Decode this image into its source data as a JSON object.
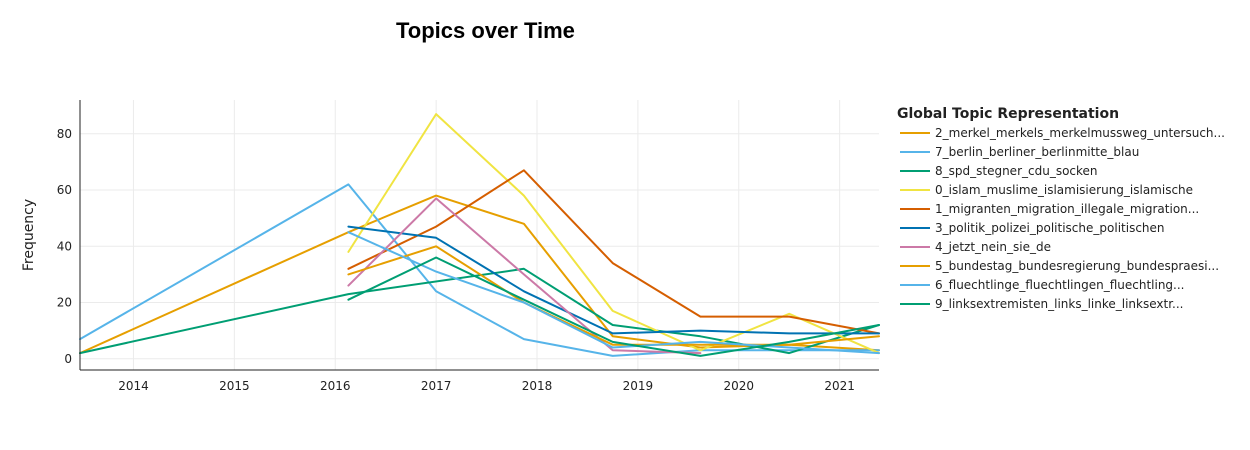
{
  "chart_data": {
    "type": "line",
    "title": "Topics over Time",
    "xlabel": "",
    "ylabel": "Frequency",
    "x_ticks": [
      "2014",
      "2015",
      "2016",
      "2017",
      "2018",
      "2019",
      "2020",
      "2021"
    ],
    "y_ticks": [
      "0",
      "20",
      "40",
      "60",
      "80"
    ],
    "xlim": [
      2013.47,
      2021.39
    ],
    "ylim": [
      -4,
      92
    ],
    "grid": true,
    "legend": {
      "title": "Global Topic Representation",
      "placement": "right"
    },
    "series": [
      {
        "name": "2_merkel_merkels_merkelmussweg_untersuch...",
        "color": "#E69F00",
        "x": [
          2013.47,
          2016.13,
          2017.0,
          2017.87,
          2018.75,
          2019.62,
          2020.5,
          2021.39
        ],
        "y": [
          2,
          45,
          58,
          48,
          8,
          4,
          5,
          3
        ]
      },
      {
        "name": "7_berlin_berliner_berlinmitte_blau",
        "color": "#56B4E9",
        "x": [
          2013.47,
          2016.13,
          2017.0,
          2017.87,
          2018.75,
          2019.62,
          2020.5,
          2021.39
        ],
        "y": [
          7,
          62,
          24,
          7,
          1,
          3,
          3,
          3
        ]
      },
      {
        "name": "8_spd_stegner_cdu_socken",
        "color": "#009E73",
        "x": [
          2013.47,
          2016.13,
          2017.87,
          2018.75,
          2019.62,
          2020.5,
          2021.39
        ],
        "y": [
          2,
          23,
          32,
          12,
          8,
          2,
          12
        ]
      },
      {
        "name": "0_islam_muslime_islamisierung_islamische",
        "color": "#F0E442",
        "x": [
          2016.13,
          2017.0,
          2017.87,
          2018.75,
          2019.62,
          2020.5,
          2021.39
        ],
        "y": [
          38,
          87,
          58,
          17,
          3,
          16,
          2
        ]
      },
      {
        "name": "1_migranten_migration_illegale_migration...",
        "color": "#D55E00",
        "x": [
          2016.13,
          2017.0,
          2017.87,
          2018.75,
          2019.62,
          2020.5,
          2021.39
        ],
        "y": [
          32,
          47,
          67,
          34,
          15,
          15,
          9
        ]
      },
      {
        "name": "3_politik_polizei_politische_politischen",
        "color": "#0072B2",
        "x": [
          2016.13,
          2017.0,
          2017.87,
          2018.75,
          2019.62,
          2020.5,
          2021.39
        ],
        "y": [
          47,
          43,
          24,
          9,
          10,
          9,
          9
        ]
      },
      {
        "name": "4_jetzt_nein_sie_de",
        "color": "#CC79A7",
        "x": [
          2016.13,
          2017.0,
          2017.87,
          2018.75,
          2019.62
        ],
        "y": [
          26,
          57,
          30,
          3,
          2
        ]
      },
      {
        "name": "5_bundestag_bundesregierung_bundespraesi...",
        "color": "#E69F00",
        "x": [
          2016.13,
          2017.0,
          2017.87,
          2018.75,
          2019.62,
          2020.5,
          2021.39
        ],
        "y": [
          30,
          40,
          20,
          5,
          5,
          5,
          8
        ]
      },
      {
        "name": "6_fluechtlinge_fluechtlingen_fluechtling...",
        "color": "#56B4E9",
        "x": [
          2016.13,
          2017.0,
          2017.87,
          2018.75,
          2019.62,
          2020.5,
          2021.39
        ],
        "y": [
          45,
          31,
          20,
          4,
          6,
          4,
          2
        ]
      },
      {
        "name": "9_linksextremisten_links_linke_linksextr...",
        "color": "#009E73",
        "x": [
          2016.13,
          2017.0,
          2017.87,
          2018.75,
          2019.62,
          2020.5,
          2021.39
        ],
        "y": [
          21,
          36,
          21,
          6,
          1,
          6,
          12
        ]
      }
    ]
  }
}
